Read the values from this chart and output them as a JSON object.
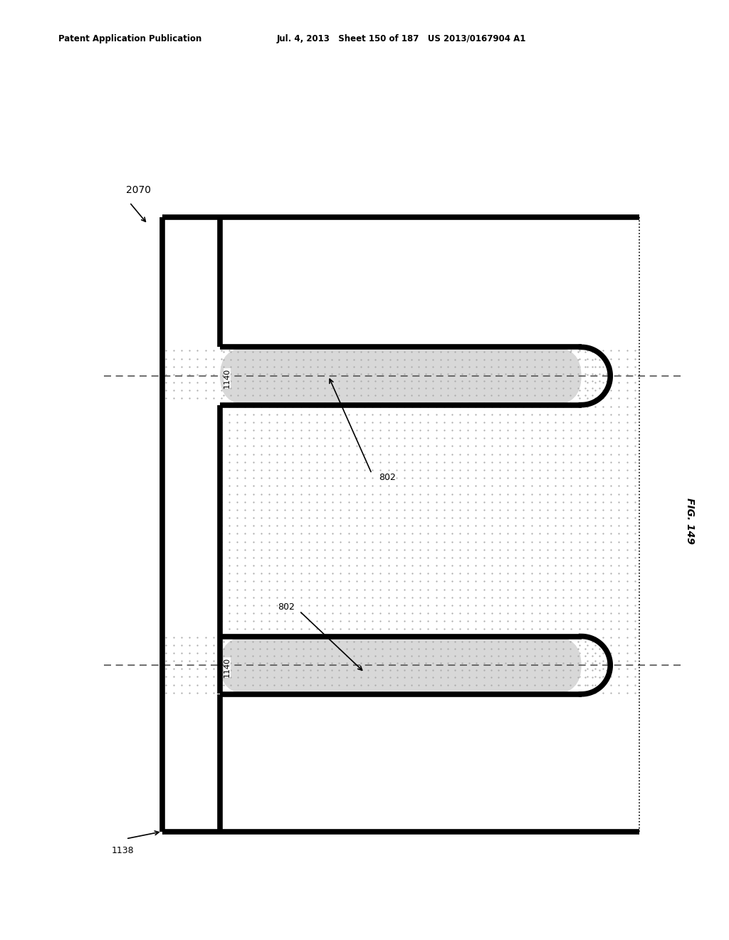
{
  "header_left": "Patent Application Publication",
  "header_mid": "Jul. 4, 2013   Sheet 150 of 187   US 2013/0167904 A1",
  "fig_label": "FIG. 149",
  "label_2070": "2070",
  "label_1138": "1138",
  "label_1140": "1140",
  "label_802": "802",
  "bg_color": "#ffffff",
  "stipple_color": "#c8c8c8",
  "line_color": "#000000",
  "finger_fill": "#d8d8d8",
  "dashed_color": "#555555",
  "lw_thick": 5.5,
  "lw_thin": 1.5
}
